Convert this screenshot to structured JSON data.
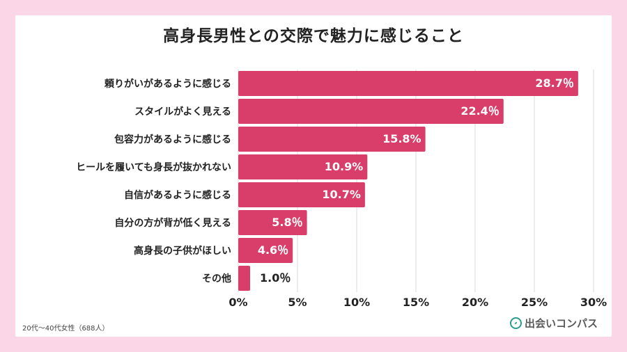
{
  "title": "高身長男性との交際で魅力に感じること",
  "footnote": "20代〜40代女性（688人）",
  "brand": {
    "name": "出会いコンパス",
    "icon": "compass-icon",
    "icon_color": "#2a9d8f"
  },
  "colors": {
    "bar": "#d93d6a",
    "page_background": "#fbd6e6",
    "gridline": "#d8d8d8"
  },
  "chart_data": {
    "type": "bar",
    "orientation": "horizontal",
    "categories": [
      "頼りがいがあるように感じる",
      "スタイルがよく見える",
      "包容力があるように感じる",
      "ヒールを履いても身長が抜かれない",
      "自信があるように感じる",
      "自分の方が背が低く見える",
      "高身長の子供がほしい",
      "その他"
    ],
    "values": [
      28.7,
      22.4,
      15.8,
      10.9,
      10.7,
      5.8,
      4.6,
      1.0
    ],
    "value_labels": [
      "28.7％",
      "22.4％",
      "15.8%",
      "10.9%",
      "10.7%",
      "5.8％",
      "4.6％",
      "1.0％"
    ],
    "xlim": [
      0,
      30
    ],
    "xticks": [
      0,
      5,
      10,
      15,
      20,
      25,
      30
    ],
    "xtick_labels": [
      "0%",
      "5%",
      "10%",
      "15%",
      "20%",
      "25%",
      "30%"
    ],
    "grid": true,
    "legend": "none"
  }
}
